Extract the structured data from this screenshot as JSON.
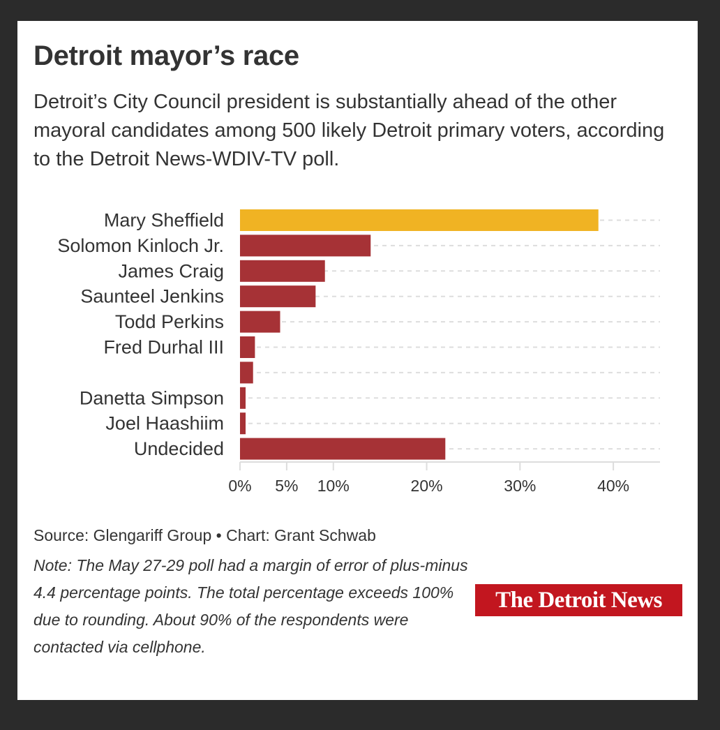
{
  "header": {
    "title": "Detroit mayor’s race",
    "subtitle": "Detroit’s City Council president is substantially ahead of the other mayoral candidates among 500 likely Detroit primary voters, according to the Detroit News-WDIV-TV poll."
  },
  "chart_data": {
    "type": "bar",
    "orientation": "horizontal",
    "categories": [
      "Mary Sheffield",
      "Solomon Kinloch Jr.",
      "James Craig",
      "Saunteel Jenkins",
      "Todd Perkins",
      "Fred Durhal III",
      "",
      "Danetta Simpson",
      "Joel Haashiim",
      "Undecided"
    ],
    "values": [
      38.4,
      14.0,
      9.1,
      8.1,
      4.3,
      1.6,
      1.4,
      0.6,
      0.6,
      22.0
    ],
    "bar_colors": [
      "#f0b323",
      "#a63236",
      "#a63236",
      "#a63236",
      "#a63236",
      "#a63236",
      "#a63236",
      "#a63236",
      "#a63236",
      "#a63236"
    ],
    "x_ticks": [
      0,
      5,
      10,
      20,
      30,
      40
    ],
    "x_tick_labels": [
      "0%",
      "5%",
      "10%",
      "20%",
      "30%",
      "40%"
    ],
    "xlim": [
      0,
      45
    ],
    "grid": true,
    "xlabel": "",
    "ylabel": ""
  },
  "footer": {
    "source": "Source: Glengariff Group • Chart: Grant Schwab",
    "note": "Note: The May 27-29 poll had a margin of error of plus-minus 4.4 percentage points. The total percentage exceeds 100% due to rounding. About 90% of the respondents were contacted via cellphone.",
    "logo_text": "The Detroit News"
  },
  "colors": {
    "background": "#2b2b2b",
    "card": "#ffffff",
    "text": "#333333",
    "highlight_bar": "#f0b323",
    "bar": "#a63236",
    "grid": "#dddddd",
    "logo_bg": "#c2161f"
  }
}
